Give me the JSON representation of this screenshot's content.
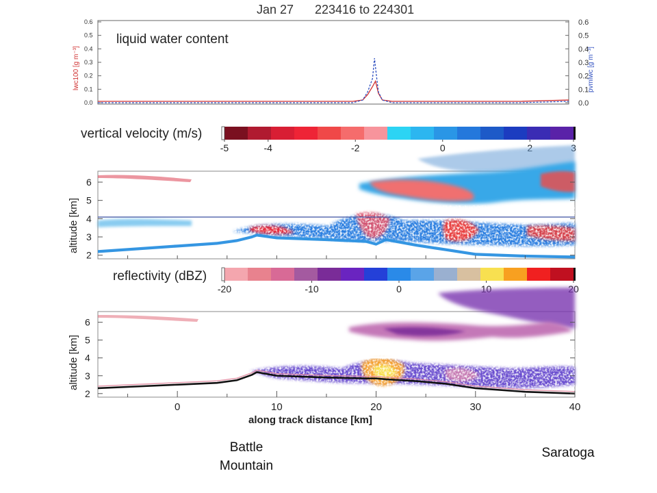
{
  "title": {
    "date": "Jan 27",
    "range": "223416 to 224301"
  },
  "panels": {
    "lwc": {
      "label": "liquid water content",
      "ylabel_left": "lwc100 [g m⁻³]",
      "ylabel_right": "pvmlwc [g m⁻³]",
      "yticks": [
        "0.0",
        "0.1",
        "0.2",
        "0.3",
        "0.4",
        "0.5",
        "0.6"
      ]
    },
    "velocity": {
      "label": "vertical velocity (m/s)",
      "ylabel": "altitude [km]"
    },
    "reflectivity": {
      "label": "reflectivity (dBZ)",
      "ylabel": "altitude [km]",
      "xlabel": "along track distance [km]"
    }
  },
  "colorbars": {
    "velocity": {
      "colors": [
        "#7a1020",
        "#b01a30",
        "#d81e34",
        "#ee2436",
        "#f04848",
        "#f56c6c",
        "#f7949c",
        "#2cd4f4",
        "#2cb6f0",
        "#2a96e6",
        "#2478dc",
        "#1d5ac8",
        "#1c3cc0",
        "#3a2cb4",
        "#5a22a8"
      ],
      "ticks": [
        {
          "label": "-5",
          "v": -5
        },
        {
          "label": "-4",
          "v": -4
        },
        {
          "label": "-2",
          "v": -2
        },
        {
          "label": "0",
          "v": 0
        },
        {
          "label": "2",
          "v": 2
        },
        {
          "label": "3",
          "v": 3
        }
      ],
      "range": [
        -5,
        3
      ]
    },
    "reflectivity": {
      "colors": [
        "#f4a6ae",
        "#e8828e",
        "#d86a96",
        "#a45aa0",
        "#7a2c98",
        "#6a24c0",
        "#2440d8",
        "#2a8ae8",
        "#5aa4e8",
        "#9ab0d0",
        "#d8c0a0",
        "#f8e050",
        "#f8a020",
        "#f02020",
        "#c01020"
      ],
      "ticks": [
        {
          "label": "-20",
          "v": -20
        },
        {
          "label": "-10",
          "v": -10
        },
        {
          "label": "0",
          "v": 0
        },
        {
          "label": "10",
          "v": 10
        },
        {
          "label": "20",
          "v": 20
        }
      ],
      "range": [
        -20,
        20
      ]
    }
  },
  "chart_data": [
    {
      "type": "line",
      "title": "liquid water content",
      "ylabel": "lwc100 [g m⁻³]",
      "ylim": [
        0,
        0.6
      ],
      "series": [
        {
          "name": "lwc100",
          "color": "#d03030",
          "x": [
            -8,
            0,
            10,
            17,
            18,
            19,
            19.5,
            20,
            20.3,
            20.6,
            21,
            22,
            25,
            30,
            35,
            40
          ],
          "values": [
            0.01,
            0.01,
            0.01,
            0.01,
            0.01,
            0.02,
            0.06,
            0.12,
            0.16,
            0.07,
            0.02,
            0.01,
            0.01,
            0.01,
            0.01,
            0.02
          ]
        },
        {
          "name": "pvmlwc",
          "color": "#3050c0",
          "x": [
            -8,
            0,
            10,
            17,
            18,
            19,
            19.5,
            20,
            20.2,
            20.4,
            20.6,
            21,
            22,
            25,
            30,
            35,
            40
          ],
          "values": [
            0.0,
            0.0,
            0.0,
            0.0,
            0.0,
            0.02,
            0.08,
            0.18,
            0.33,
            0.2,
            0.08,
            0.02,
            0.0,
            0.0,
            0.0,
            0.0,
            0.01
          ]
        }
      ]
    },
    {
      "type": "heatmap",
      "title": "vertical velocity (m/s)",
      "ylabel": "altitude [km]",
      "xlim": [
        -8,
        40
      ],
      "ylim": [
        1.8,
        6.6
      ],
      "yticks": [
        2,
        3,
        4,
        5,
        6
      ],
      "surface_altitude_km": {
        "x": [
          -8,
          -4,
          0,
          4,
          6,
          7.5,
          8,
          10,
          15,
          19,
          20,
          21,
          24,
          27,
          30,
          35,
          40
        ],
        "y": [
          2.2,
          2.35,
          2.5,
          2.65,
          2.8,
          3.0,
          3.1,
          2.95,
          2.85,
          2.75,
          2.6,
          2.85,
          2.55,
          2.3,
          2.05,
          1.95,
          1.9
        ]
      }
    },
    {
      "type": "heatmap",
      "title": "reflectivity (dBZ)",
      "xlabel": "along track distance [km]",
      "ylabel": "altitude [km]",
      "xlim": [
        -8,
        40
      ],
      "ylim": [
        1.8,
        6.6
      ],
      "xticks": [
        0,
        10,
        20,
        30,
        40
      ],
      "yticks": [
        2,
        3,
        4,
        5,
        6
      ],
      "surface_altitude_km": {
        "x": [
          -8,
          -4,
          0,
          4,
          6,
          7.5,
          8,
          10,
          15,
          19,
          20,
          21,
          24,
          27,
          30,
          35,
          40
        ],
        "y": [
          2.3,
          2.4,
          2.5,
          2.6,
          2.75,
          3.05,
          3.2,
          3.0,
          2.9,
          2.85,
          2.85,
          2.8,
          2.7,
          2.55,
          2.3,
          2.1,
          2.0
        ]
      }
    }
  ],
  "places": {
    "left": "Battle\nMountain",
    "right": "Saratoga"
  }
}
